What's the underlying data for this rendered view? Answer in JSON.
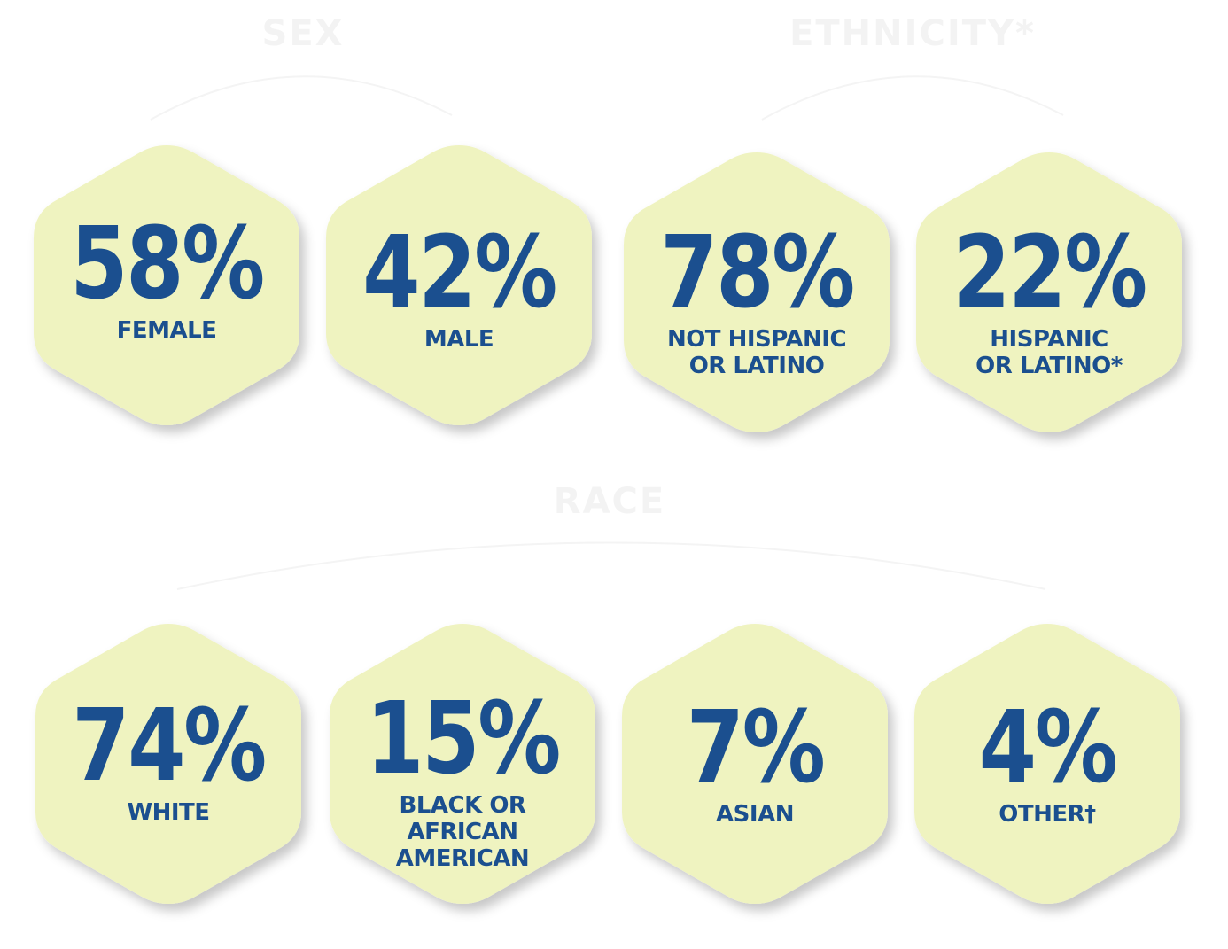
{
  "sections": {
    "sex": {
      "title": "SEX"
    },
    "ethnicity": {
      "title": "ETHNICITY*"
    },
    "race": {
      "title": "RACE"
    }
  },
  "colors": {
    "hex_fill": "#eff3c0",
    "text": "#1b4f8f",
    "title": "#f3f3f3"
  },
  "sex": [
    {
      "value": "58%",
      "label": "FEMALE"
    },
    {
      "value": "42%",
      "label": "MALE"
    }
  ],
  "ethnicity": [
    {
      "value": "78%",
      "label": "NOT HISPANIC\nOR LATINO"
    },
    {
      "value": "22%",
      "label": "HISPANIC\nOR LATINO*"
    }
  ],
  "race": [
    {
      "value": "74%",
      "label": "WHITE"
    },
    {
      "value": "15%",
      "label": "BLACK OR\nAFRICAN\nAMERICAN"
    },
    {
      "value": "7%",
      "label": "ASIAN"
    },
    {
      "value": "4%",
      "label": "OTHER†"
    }
  ]
}
